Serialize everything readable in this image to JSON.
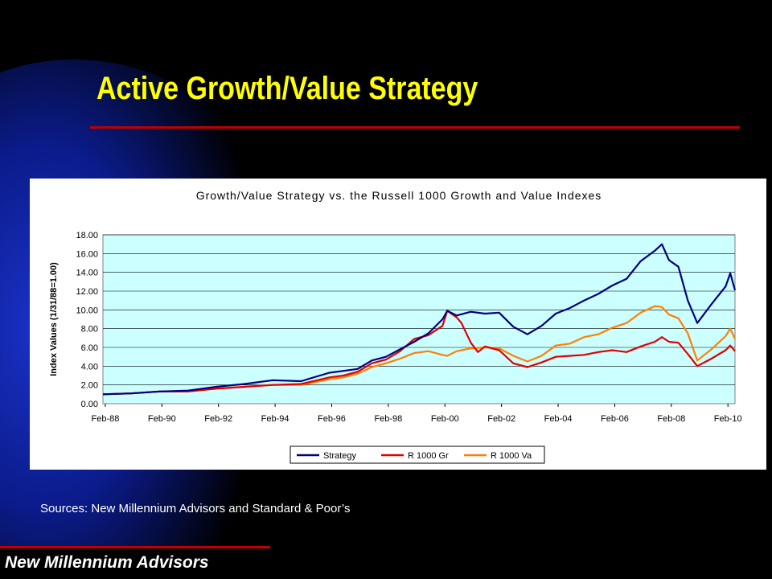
{
  "slide": {
    "title": "Active Growth/Value Strategy",
    "sources": "Sources: New Millennium Advisors and Standard & Poor’s",
    "footer": "New Millennium Advisors",
    "title_color": "#ffff00",
    "accent_rule_color": "#c00000"
  },
  "chart_data": {
    "type": "line",
    "title": "Growth/Value Strategy vs. the Russell 1000 Growth and Value Indexes",
    "ylabel": "Index Values (1/31/88=1.00)",
    "xlabel": "",
    "xlim": [
      "1988-01",
      "2010-05"
    ],
    "ylim": [
      0,
      18
    ],
    "x_ticks": [
      "Feb-88",
      "Feb-90",
      "Feb-92",
      "Feb-94",
      "Feb-96",
      "Feb-98",
      "Feb-00",
      "Feb-02",
      "Feb-04",
      "Feb-06",
      "Feb-08",
      "Feb-10"
    ],
    "y_ticks": [
      "0.00",
      "2.00",
      "4.00",
      "6.00",
      "8.00",
      "10.00",
      "12.00",
      "14.00",
      "16.00",
      "18.00"
    ],
    "grid": "horizontal",
    "plot_background": "#ccffff",
    "legend_position": "bottom",
    "series": [
      {
        "name": "Strategy",
        "color": "#000080",
        "points": [
          [
            "1988-01",
            1.0
          ],
          [
            "1989-01",
            1.1
          ],
          [
            "1990-01",
            1.3
          ],
          [
            "1991-01",
            1.4
          ],
          [
            "1992-01",
            1.8
          ],
          [
            "1993-01",
            2.1
          ],
          [
            "1994-01",
            2.5
          ],
          [
            "1995-01",
            2.4
          ],
          [
            "1996-01",
            3.3
          ],
          [
            "1996-07",
            3.5
          ],
          [
            "1997-01",
            3.7
          ],
          [
            "1997-07",
            4.6
          ],
          [
            "1998-01",
            5.0
          ],
          [
            "1998-07",
            5.8
          ],
          [
            "1999-01",
            6.6
          ],
          [
            "1999-07",
            7.5
          ],
          [
            "2000-01",
            9.0
          ],
          [
            "2000-03",
            9.9
          ],
          [
            "2000-07",
            9.4
          ],
          [
            "2001-01",
            9.8
          ],
          [
            "2001-07",
            9.6
          ],
          [
            "2002-01",
            9.7
          ],
          [
            "2002-07",
            8.2
          ],
          [
            "2003-01",
            7.4
          ],
          [
            "2003-07",
            8.3
          ],
          [
            "2004-01",
            9.6
          ],
          [
            "2004-07",
            10.2
          ],
          [
            "2005-01",
            11.0
          ],
          [
            "2005-07",
            11.7
          ],
          [
            "2006-01",
            12.6
          ],
          [
            "2006-07",
            13.3
          ],
          [
            "2007-01",
            15.2
          ],
          [
            "2007-07",
            16.3
          ],
          [
            "2007-10",
            17.0
          ],
          [
            "2008-01",
            15.3
          ],
          [
            "2008-05",
            14.6
          ],
          [
            "2008-09",
            11.0
          ],
          [
            "2009-01",
            8.6
          ],
          [
            "2009-07",
            10.6
          ],
          [
            "2010-01",
            12.5
          ],
          [
            "2010-03",
            13.9
          ],
          [
            "2010-05",
            12.1
          ]
        ]
      },
      {
        "name": "R 1000 Gr",
        "color": "#e00000",
        "points": [
          [
            "1988-01",
            1.0
          ],
          [
            "1989-01",
            1.1
          ],
          [
            "1990-01",
            1.3
          ],
          [
            "1991-01",
            1.3
          ],
          [
            "1992-01",
            1.6
          ],
          [
            "1993-01",
            1.8
          ],
          [
            "1994-01",
            2.0
          ],
          [
            "1995-01",
            2.1
          ],
          [
            "1996-01",
            2.8
          ],
          [
            "1996-07",
            3.0
          ],
          [
            "1997-01",
            3.4
          ],
          [
            "1997-07",
            4.3
          ],
          [
            "1998-01",
            4.7
          ],
          [
            "1998-07",
            5.6
          ],
          [
            "1999-01",
            6.9
          ],
          [
            "1999-07",
            7.3
          ],
          [
            "2000-01",
            8.3
          ],
          [
            "2000-03",
            9.9
          ],
          [
            "2000-07",
            9.2
          ],
          [
            "2000-09",
            8.6
          ],
          [
            "2001-01",
            6.5
          ],
          [
            "2001-04",
            5.5
          ],
          [
            "2001-07",
            6.1
          ],
          [
            "2002-01",
            5.7
          ],
          [
            "2002-07",
            4.3
          ],
          [
            "2003-01",
            3.9
          ],
          [
            "2003-07",
            4.4
          ],
          [
            "2004-01",
            5.0
          ],
          [
            "2004-07",
            5.1
          ],
          [
            "2005-01",
            5.2
          ],
          [
            "2005-07",
            5.5
          ],
          [
            "2006-01",
            5.7
          ],
          [
            "2006-07",
            5.5
          ],
          [
            "2007-01",
            6.1
          ],
          [
            "2007-07",
            6.6
          ],
          [
            "2007-10",
            7.1
          ],
          [
            "2008-01",
            6.6
          ],
          [
            "2008-05",
            6.5
          ],
          [
            "2008-09",
            5.3
          ],
          [
            "2009-01",
            4.0
          ],
          [
            "2009-07",
            4.8
          ],
          [
            "2010-01",
            5.7
          ],
          [
            "2010-03",
            6.2
          ],
          [
            "2010-05",
            5.6
          ]
        ]
      },
      {
        "name": "R 1000 Va",
        "color": "#ff8000",
        "points": [
          [
            "1988-01",
            1.0
          ],
          [
            "1989-01",
            1.1
          ],
          [
            "1990-01",
            1.3
          ],
          [
            "1991-01",
            1.3
          ],
          [
            "1992-01",
            1.6
          ],
          [
            "1993-01",
            1.8
          ],
          [
            "1994-01",
            2.0
          ],
          [
            "1995-01",
            2.0
          ],
          [
            "1996-01",
            2.6
          ],
          [
            "1996-07",
            2.8
          ],
          [
            "1997-01",
            3.2
          ],
          [
            "1997-07",
            3.9
          ],
          [
            "1998-01",
            4.3
          ],
          [
            "1998-07",
            4.8
          ],
          [
            "1999-01",
            5.4
          ],
          [
            "1999-07",
            5.6
          ],
          [
            "2000-01",
            5.2
          ],
          [
            "2000-03",
            5.1
          ],
          [
            "2000-07",
            5.6
          ],
          [
            "2001-01",
            5.9
          ],
          [
            "2001-07",
            6.0
          ],
          [
            "2002-01",
            5.9
          ],
          [
            "2002-07",
            5.1
          ],
          [
            "2003-01",
            4.5
          ],
          [
            "2003-07",
            5.1
          ],
          [
            "2004-01",
            6.2
          ],
          [
            "2004-07",
            6.4
          ],
          [
            "2005-01",
            7.1
          ],
          [
            "2005-07",
            7.4
          ],
          [
            "2006-01",
            8.1
          ],
          [
            "2006-07",
            8.6
          ],
          [
            "2007-01",
            9.7
          ],
          [
            "2007-07",
            10.4
          ],
          [
            "2007-10",
            10.3
          ],
          [
            "2008-01",
            9.5
          ],
          [
            "2008-05",
            9.1
          ],
          [
            "2008-09",
            7.5
          ],
          [
            "2009-01",
            4.6
          ],
          [
            "2009-07",
            5.8
          ],
          [
            "2010-01",
            7.2
          ],
          [
            "2010-03",
            8.0
          ],
          [
            "2010-05",
            6.9
          ]
        ]
      }
    ]
  }
}
